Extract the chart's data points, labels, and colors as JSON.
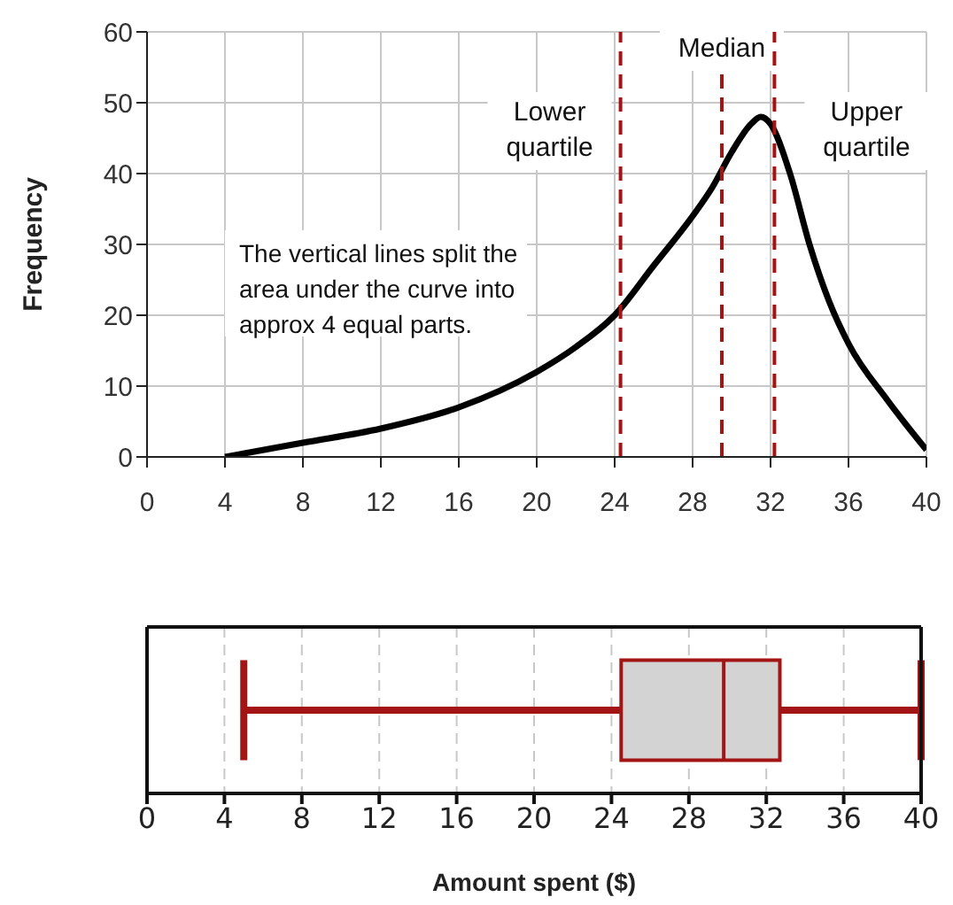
{
  "chart_data": [
    {
      "type": "line",
      "ylabel": "Frequency",
      "x": [
        4,
        8,
        12,
        16,
        20,
        22,
        24,
        26,
        28,
        29,
        30,
        31,
        31.5,
        32,
        33,
        34,
        35,
        36,
        38,
        40
      ],
      "series": [
        {
          "color": "#000000",
          "values": [
            0,
            2,
            4,
            7,
            12,
            15.5,
            20,
            27,
            34,
            38,
            43,
            47,
            48,
            47,
            40,
            30,
            22,
            16,
            8,
            1
          ]
        }
      ],
      "xlim": [
        0,
        40
      ],
      "xticks": [
        0,
        4,
        8,
        12,
        16,
        20,
        24,
        28,
        32,
        36,
        40
      ],
      "ylim": [
        0,
        60
      ],
      "yticks": [
        0,
        10,
        20,
        30,
        40,
        50,
        60
      ],
      "grid": true,
      "marker": "none",
      "line_style": "solid",
      "ref_lines": [
        {
          "axis": "x",
          "value": 24.3,
          "label": "Lower quartile",
          "color": "#a31515",
          "line_style": "dashed"
        },
        {
          "axis": "x",
          "value": 29.5,
          "label": "Median",
          "color": "#a31515",
          "line_style": "dashed"
        },
        {
          "axis": "x",
          "value": 32.2,
          "label": "Upper quartile",
          "color": "#a31515",
          "line_style": "dashed"
        }
      ],
      "annotations": [
        "The vertical lines split the area under the curve into approx 4 equal parts."
      ]
    },
    {
      "type": "box",
      "orientation": "horizontal",
      "xlabel": "Amount spent ($)",
      "categories": [
        null
      ],
      "boxes": [
        {
          "low": 5,
          "q1": 24.5,
          "median": 29.8,
          "q3": 32.7,
          "high": 40
        }
      ],
      "color": "#a31515",
      "xlim": [
        0,
        40
      ],
      "xticks": [
        0,
        4,
        8,
        12,
        16,
        20,
        24,
        28,
        32,
        36,
        40
      ],
      "grid": "x",
      "tick_labels": "x"
    }
  ]
}
